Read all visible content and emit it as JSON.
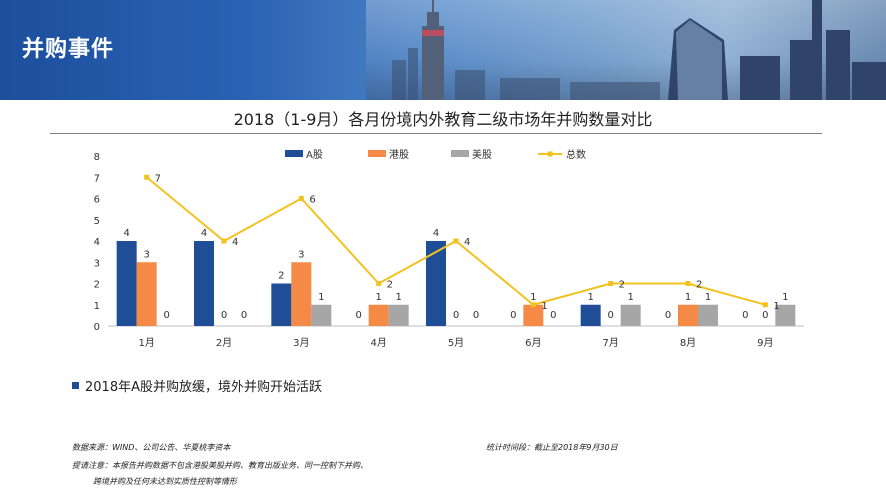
{
  "header": {
    "title": "并购事件"
  },
  "chart_data": {
    "type": "bar",
    "title": "2018（1-9月）各月份境内外教育二级市场年并购数量对比",
    "categories": [
      "1月",
      "2月",
      "3月",
      "4月",
      "5月",
      "6月",
      "7月",
      "8月",
      "9月"
    ],
    "series": [
      {
        "name": "A股",
        "values": [
          4,
          4,
          2,
          0,
          4,
          0,
          1,
          0,
          0
        ],
        "color": "#1f4e96"
      },
      {
        "name": "港股",
        "values": [
          3,
          0,
          3,
          1,
          0,
          1,
          0,
          1,
          0
        ],
        "color": "#f48a45"
      },
      {
        "name": "美股",
        "values": [
          0,
          0,
          1,
          1,
          0,
          0,
          1,
          1,
          1
        ],
        "color": "#a6a6a6"
      }
    ],
    "line_series": {
      "name": "总数",
      "values": [
        7,
        4,
        6,
        2,
        4,
        1,
        2,
        2,
        1
      ],
      "color": "#f2c21f"
    },
    "yticks": [
      "0",
      "1",
      "2",
      "3",
      "4",
      "5",
      "6",
      "7",
      "8"
    ],
    "ylim": [
      0,
      8
    ],
    "legend": "top",
    "grid": false
  },
  "bullet": {
    "text": "2018年A股并购放缓，境外并购开始活跃"
  },
  "footnotes": {
    "source": "数据来源：WIND、公司公告、华夏桃李资本",
    "period": "统计时间段：截止至2018年9月30日",
    "note_line1": "提请注意：本报告并购数据不包含港股美股并购、教育出版业务、同一控制下并购、",
    "note_line2": "跨境并购及任何未达到实质性控制等情形"
  }
}
